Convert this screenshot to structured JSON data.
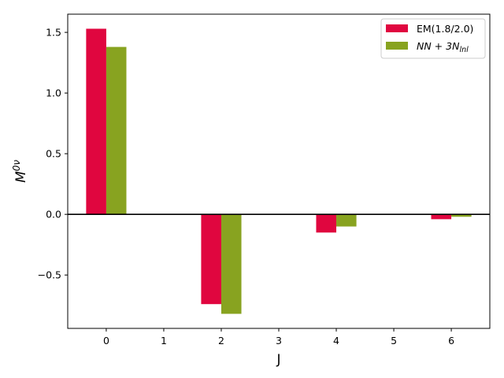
{
  "chart_data": {
    "type": "bar",
    "x": [
      0,
      1,
      2,
      3,
      4,
      5,
      6
    ],
    "xticks": [
      "0",
      "1",
      "2",
      "3",
      "4",
      "5",
      "6"
    ],
    "xlabel": "J",
    "ylabel": "M^{0ν}",
    "ylabel_parts": {
      "base": "M",
      "sup": "0ν"
    },
    "ylim": [
      -0.94,
      1.65
    ],
    "xlim": [
      -0.67,
      6.67
    ],
    "yticks": [
      -0.5,
      0.0,
      0.5,
      1.0,
      1.5
    ],
    "ytick_labels": [
      "−0.5",
      "0.0",
      "0.5",
      "1.0",
      "1.5"
    ],
    "grid": false,
    "legend_position": "top-right",
    "zero_line": true,
    "series": [
      {
        "name": "EM(1.8/2.0)",
        "color": "#e0063f",
        "points": [
          {
            "x": 0,
            "value": 1.53
          },
          {
            "x": 2,
            "value": -0.74
          },
          {
            "x": 4,
            "value": -0.15
          },
          {
            "x": 6,
            "value": -0.04
          }
        ]
      },
      {
        "name": "NN + 3N_lnl",
        "name_parts": {
          "main": "NN + 3N",
          "sub": "lnl"
        },
        "color": "#88a320",
        "points": [
          {
            "x": 0,
            "value": 1.38
          },
          {
            "x": 2,
            "value": -0.82
          },
          {
            "x": 4,
            "value": -0.1
          },
          {
            "x": 6,
            "value": -0.02
          }
        ]
      }
    ]
  }
}
